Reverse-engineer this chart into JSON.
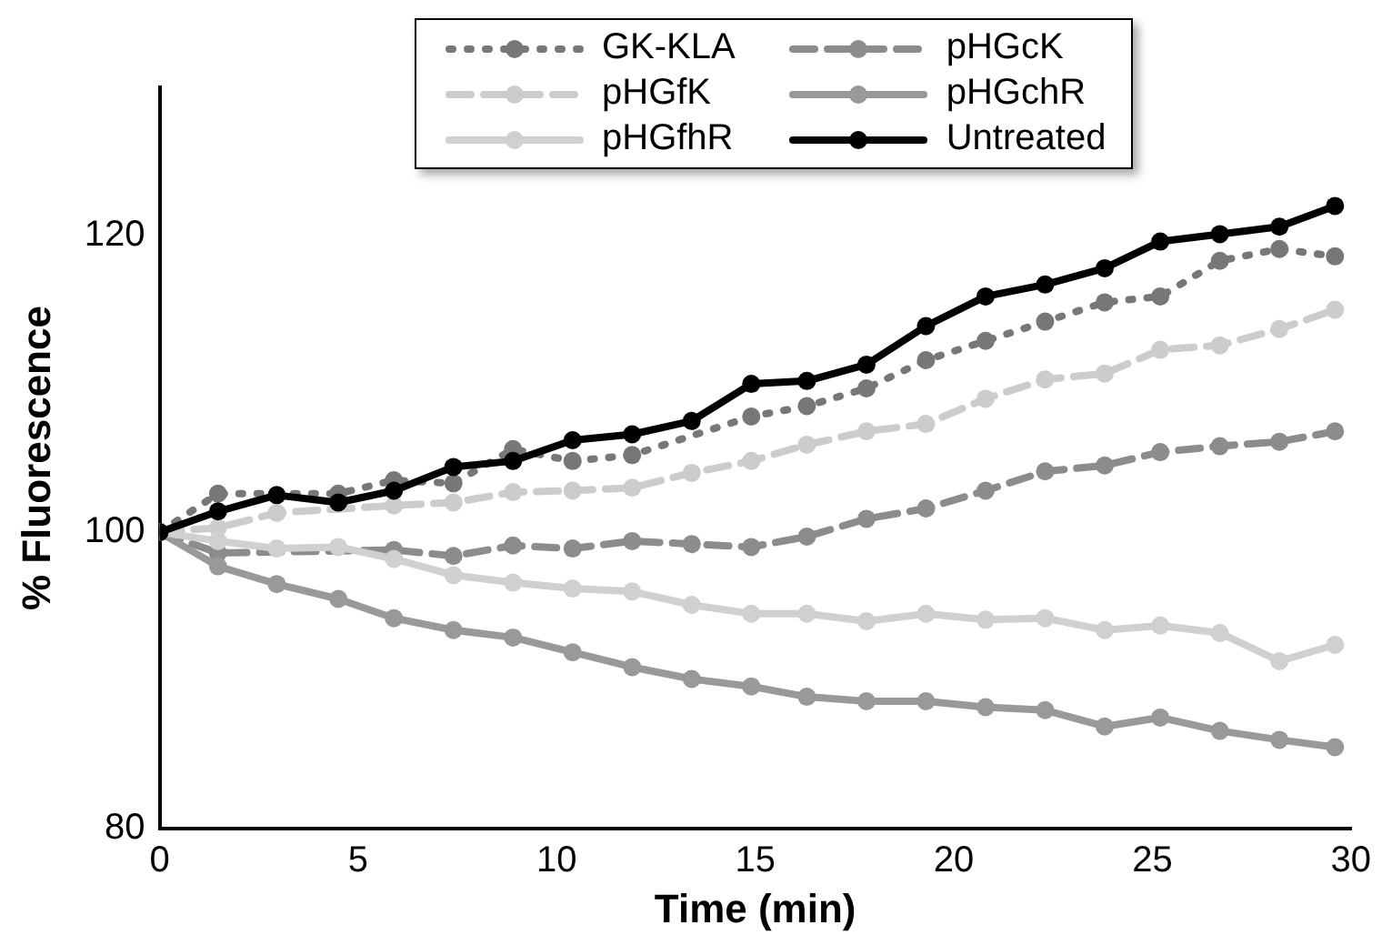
{
  "chart_data": {
    "type": "line",
    "xlabel": "Time (min)",
    "ylabel": "% Fluorescence",
    "x": [
      0,
      1.47,
      2.95,
      4.5,
      5.9,
      7.4,
      8.9,
      10.4,
      11.9,
      13.4,
      14.9,
      16.3,
      17.8,
      19.3,
      20.8,
      22.3,
      23.8,
      25.2,
      26.7,
      28.2,
      29.6
    ],
    "xlim": [
      0,
      30
    ],
    "xticks": [
      0,
      5,
      10,
      15,
      20,
      25,
      30
    ],
    "ylim": [
      80,
      130
    ],
    "yticks": [
      80,
      100,
      120
    ],
    "grid": false,
    "legend": "top",
    "marker": "circle",
    "series": [
      {
        "name": "GK-KLA",
        "color": "#777777",
        "line_style": "dotted",
        "values": [
          100,
          102.6,
          null,
          102.6,
          103.5,
          103.3,
          105.6,
          104.8,
          105.2,
          null,
          107.8,
          108.5,
          109.7,
          111.6,
          112.9,
          114.2,
          115.5,
          115.9,
          118.3,
          119.1,
          118.6
        ]
      },
      {
        "name": "pHGcK",
        "color": "#8c8c8c",
        "line_style": "dashed",
        "values": [
          100,
          98.6,
          null,
          null,
          98.8,
          98.4,
          99.1,
          98.9,
          99.4,
          99.2,
          99.0,
          99.7,
          100.9,
          101.6,
          102.8,
          104.1,
          104.5,
          105.4,
          105.8,
          106.1,
          106.8
        ]
      },
      {
        "name": "pHGfK",
        "color": "#cccccc",
        "line_style": "dashed",
        "values": [
          100,
          100.3,
          101.3,
          null,
          101.8,
          102.0,
          102.7,
          102.8,
          103.0,
          104.0,
          104.8,
          105.9,
          106.8,
          107.3,
          109.0,
          110.3,
          110.7,
          112.3,
          112.6,
          113.7,
          115.0
        ]
      },
      {
        "name": "pHGchR",
        "color": "#999999",
        "line_style": "solid",
        "values": [
          100,
          97.7,
          96.5,
          95.5,
          94.2,
          93.4,
          92.9,
          91.9,
          90.9,
          90.1,
          89.6,
          88.9,
          88.6,
          88.6,
          88.2,
          88.0,
          86.9,
          87.5,
          86.6,
          86.0,
          85.5
        ]
      },
      {
        "name": "pHGfhR",
        "color": "#d0d0d0",
        "line_style": "solid",
        "values": [
          100,
          99.4,
          98.9,
          99.0,
          98.2,
          97.1,
          96.6,
          96.2,
          96.0,
          95.1,
          94.5,
          94.5,
          94.0,
          94.5,
          94.1,
          94.2,
          93.4,
          93.7,
          93.2,
          91.3,
          92.4
        ]
      },
      {
        "name": "Untreated",
        "color": "#000000",
        "line_style": "solid",
        "values": [
          100,
          101.4,
          102.5,
          102.0,
          102.8,
          104.4,
          104.8,
          106.2,
          106.6,
          107.5,
          110.0,
          110.2,
          111.3,
          113.9,
          115.9,
          116.7,
          117.8,
          119.6,
          120.1,
          120.6,
          122.0
        ]
      }
    ]
  }
}
